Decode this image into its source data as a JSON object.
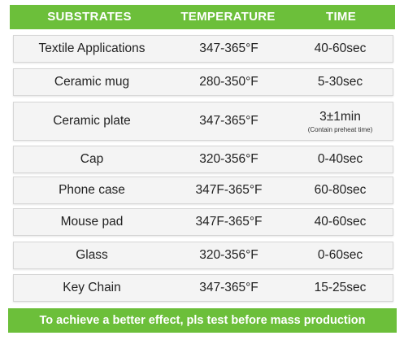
{
  "header": {
    "substrates": "SUBSTRATES",
    "temperature": "TEMPERATURE",
    "time": "TIME"
  },
  "rows": [
    {
      "substrate": "Textile Applications",
      "temperature": "347-365°F",
      "time": "40-60sec",
      "note": ""
    },
    {
      "substrate": "Ceramic mug",
      "temperature": "280-350°F",
      "time": "5-30sec",
      "note": ""
    },
    {
      "substrate": "Ceramic plate",
      "temperature": "347-365°F",
      "time": "3±1min",
      "note": "(Contain preheat time)"
    },
    {
      "substrate": "Cap",
      "temperature": "320-356°F",
      "time": "0-40sec",
      "note": ""
    },
    {
      "substrate": "Phone case",
      "temperature": "347F-365°F",
      "time": "60-80sec",
      "note": ""
    },
    {
      "substrate": "Mouse pad",
      "temperature": "347F-365°F",
      "time": "40-60sec",
      "note": ""
    },
    {
      "substrate": "Glass",
      "temperature": "320-356°F",
      "time": "0-60sec",
      "note": ""
    },
    {
      "substrate": "Key Chain",
      "temperature": "347-365°F",
      "time": "15-25sec",
      "note": ""
    }
  ],
  "footer": {
    "text": "To achieve a  better effect, pls test before mass production"
  },
  "colors": {
    "accent_green": "#6cbf3a",
    "row_background": "#f4f4f4"
  }
}
